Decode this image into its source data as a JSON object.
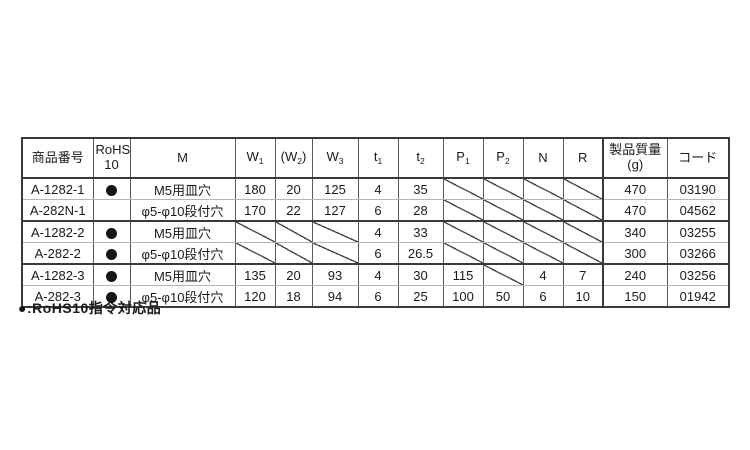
{
  "table": {
    "columns": [
      {
        "id": "product-no",
        "label": "商品番号"
      },
      {
        "id": "rohs",
        "line1": "RoHS",
        "line2": "10"
      },
      {
        "id": "m",
        "label": "M"
      },
      {
        "id": "w1",
        "base": "W",
        "sub": "1"
      },
      {
        "id": "w2",
        "base": "(W",
        "sub": "2",
        "after": ")"
      },
      {
        "id": "w3",
        "base": "W",
        "sub": "3"
      },
      {
        "id": "t1",
        "base": "t",
        "sub": "1"
      },
      {
        "id": "t2",
        "base": "t",
        "sub": "2"
      },
      {
        "id": "p1",
        "base": "P",
        "sub": "1"
      },
      {
        "id": "p2",
        "base": "P",
        "sub": "2"
      },
      {
        "id": "n",
        "label": "N"
      },
      {
        "id": "r",
        "label": "R"
      },
      {
        "id": "weight",
        "line1": "製品質量",
        "line2": "(g)"
      },
      {
        "id": "code",
        "label": "コード"
      }
    ],
    "rows": [
      {
        "cells": [
          "A-1282-1",
          "●",
          "M5用皿穴",
          "180",
          "20",
          "125",
          "4",
          "35",
          "/",
          "/",
          "/",
          "/",
          "470",
          "03190"
        ]
      },
      {
        "cells": [
          "A-282N-1",
          "",
          "φ5-φ10段付穴",
          "170",
          "22",
          "127",
          "6",
          "28",
          "/",
          "/",
          "/",
          "/",
          "470",
          "04562"
        ]
      },
      {
        "cells": [
          "A-1282-2",
          "●",
          "M5用皿穴",
          "/",
          "/",
          "/",
          "4",
          "33",
          "/",
          "/",
          "/",
          "/",
          "340",
          "03255"
        ]
      },
      {
        "cells": [
          "A-282-2",
          "●",
          "φ5-φ10段付穴",
          "/",
          "/",
          "/",
          "6",
          "26.5",
          "/",
          "/",
          "/",
          "/",
          "300",
          "03266"
        ]
      },
      {
        "cells": [
          "A-1282-3",
          "●",
          "M5用皿穴",
          "135",
          "20",
          "93",
          "4",
          "30",
          "115",
          "/",
          "4",
          "7",
          "240",
          "03256"
        ]
      },
      {
        "cells": [
          "A-282-3",
          "●",
          "φ5-φ10段付穴",
          "120",
          "18",
          "94",
          "6",
          "25",
          "100",
          "50",
          "6",
          "10",
          "150",
          "01942"
        ]
      }
    ]
  },
  "note": "●:RoHS10指令対応品"
}
